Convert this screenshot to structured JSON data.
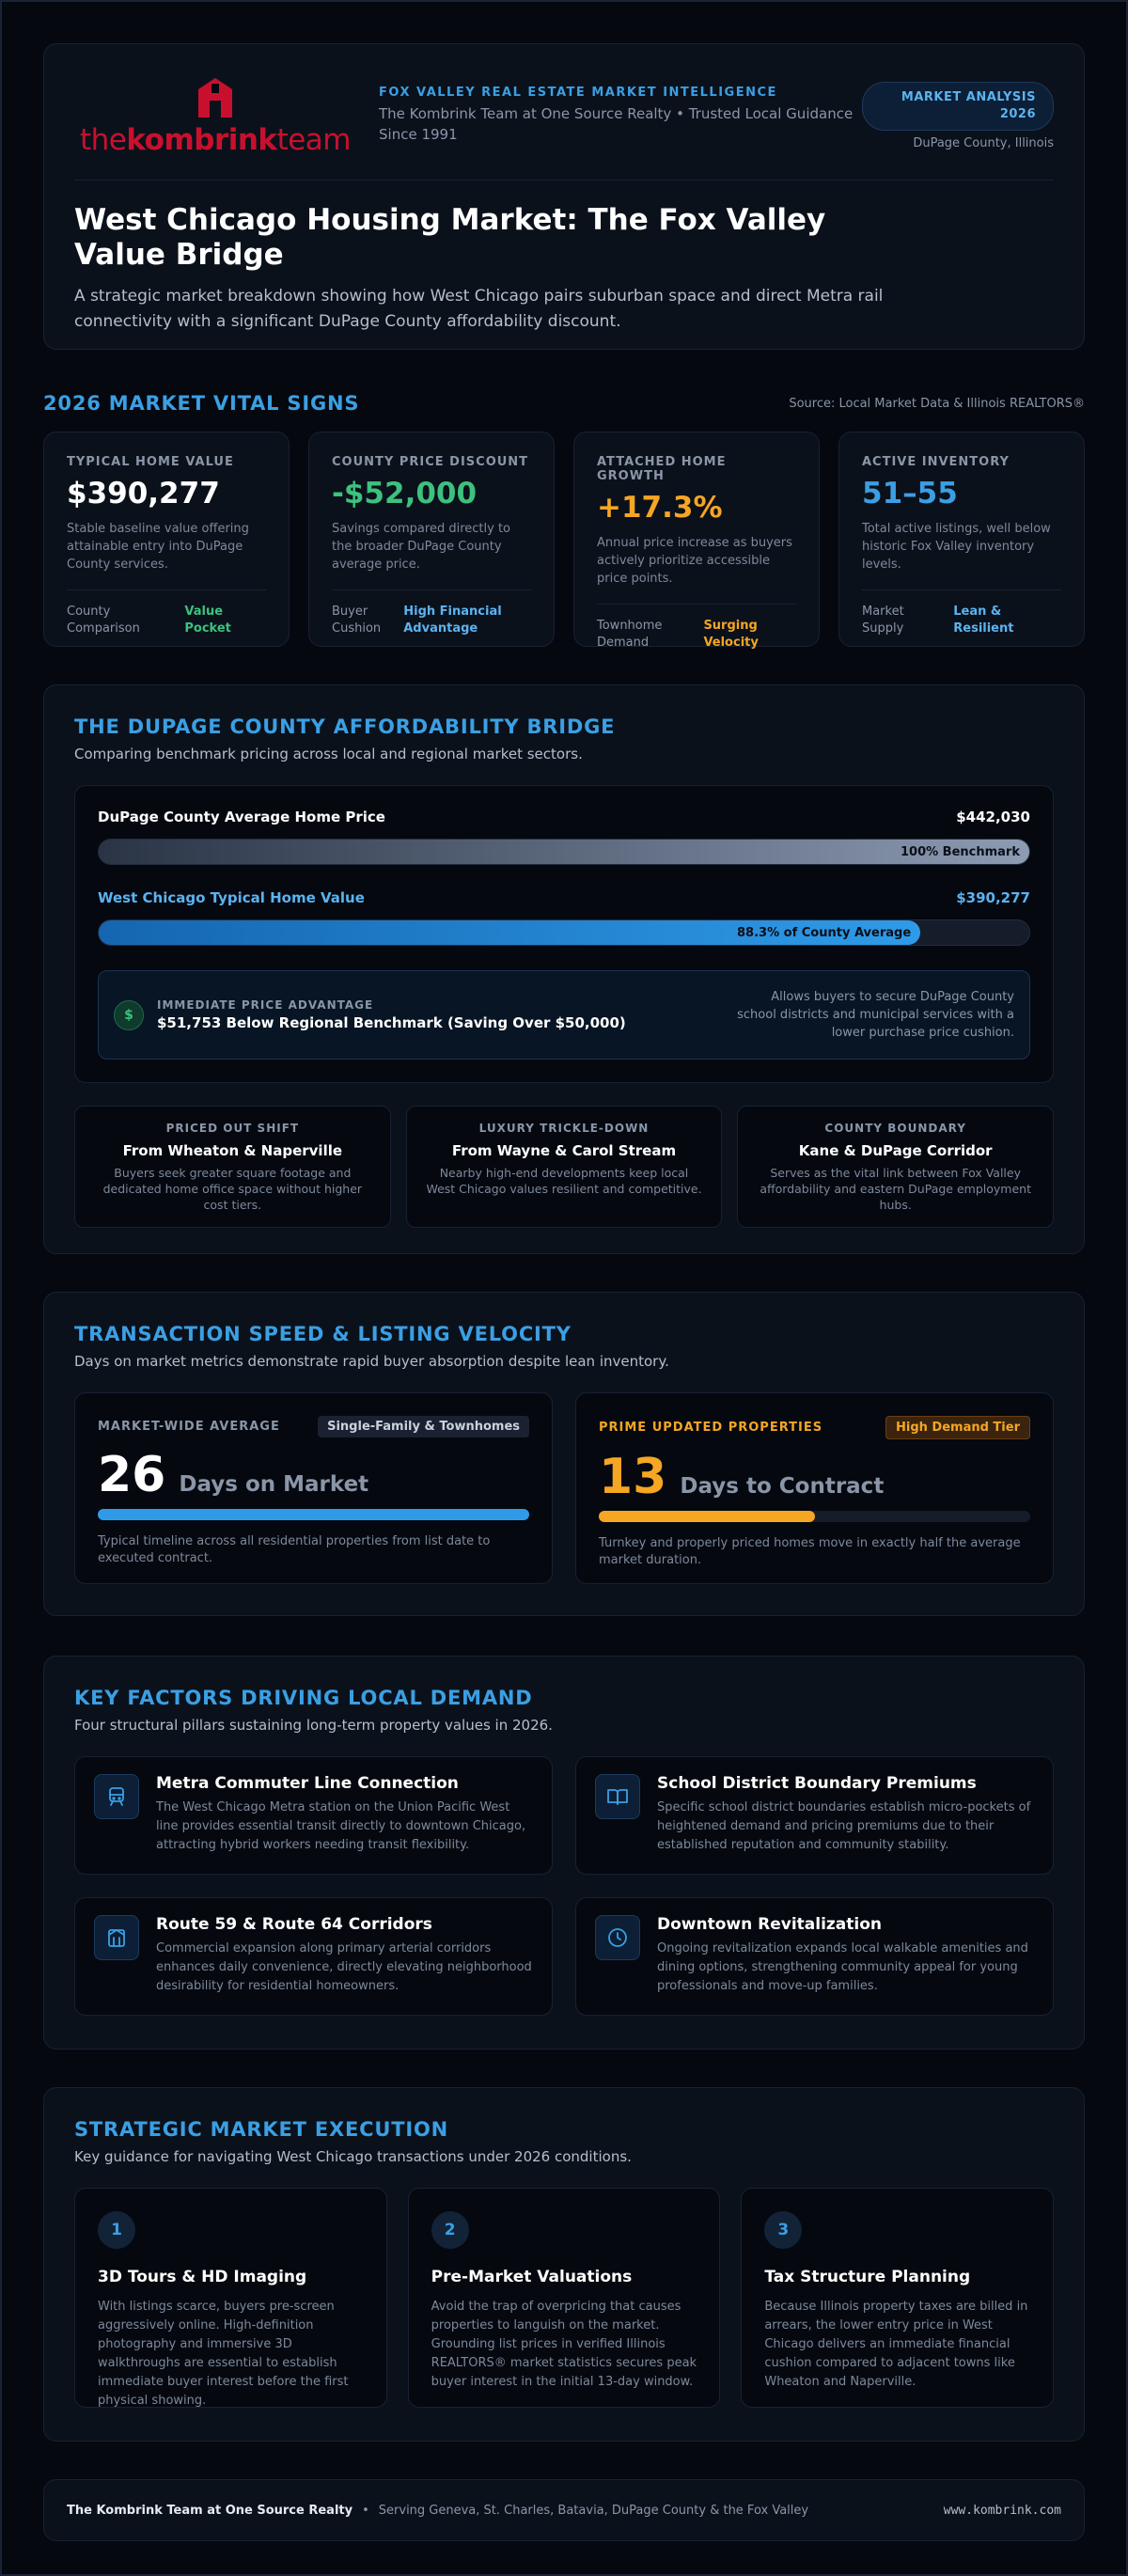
{
  "header": {
    "logo_the": "the",
    "logo_kombrink": "kombrink",
    "logo_team": "team",
    "eyebrow": "FOX VALLEY REAL ESTATE MARKET INTELLIGENCE",
    "subtitle": "The Kombrink Team at One Source Realty • Trusted Local Guidance Since 1991",
    "badge": "MARKET ANALYSIS 2026",
    "location": "DuPage County, Illinois",
    "title": "West Chicago Housing Market: The Fox Valley Value Bridge",
    "description": "A strategic market breakdown showing how West Chicago pairs suburban space and direct Metra rail connectivity with a significant DuPage County affordability discount."
  },
  "vitals": {
    "title": "2026 MARKET VITAL SIGNS",
    "source": "Source: Local Market Data & Illinois REALTORS®",
    "cards": [
      {
        "label": "TYPICAL HOME VALUE",
        "value": "$390,277",
        "desc": "Stable baseline value offering attainable entry into DuPage County services.",
        "foot_label": "County Comparison",
        "foot_value": "Value Pocket"
      },
      {
        "label": "COUNTY PRICE DISCOUNT",
        "value": "-$52,000",
        "desc": "Savings compared directly to the broader DuPage County average price.",
        "foot_label": "Buyer Cushion",
        "foot_value": "High Financial Advantage"
      },
      {
        "label": "ATTACHED HOME GROWTH",
        "value": "+17.3%",
        "desc": "Annual price increase as buyers actively prioritize accessible price points.",
        "foot_label": "Townhome Demand",
        "foot_value": "Surging Velocity"
      },
      {
        "label": "ACTIVE INVENTORY",
        "value": "51–55",
        "desc": "Total active listings, well below historic Fox Valley inventory levels.",
        "foot_label": "Market Supply",
        "foot_value": "Lean & Resilient"
      }
    ]
  },
  "bridge": {
    "title": "THE DUPAGE COUNTY AFFORDABILITY BRIDGE",
    "subtitle": "Comparing benchmark pricing across local and regional market sectors.",
    "bars": [
      {
        "name": "DuPage County Average Home Price",
        "price": "$442,030",
        "value": 100,
        "label": "100% Benchmark"
      },
      {
        "name": "West Chicago Typical Home Value",
        "price": "$390,277",
        "value": 88.3,
        "label": "88.3% of County Average"
      }
    ],
    "advantage": {
      "label": "IMMEDIATE PRICE ADVANTAGE",
      "value": "$51,753 Below Regional Benchmark (Saving Over $50,000)",
      "note": "Allows buyers to secure DuPage County school districts and municipal services with a lower purchase price cushion."
    },
    "cards": [
      {
        "label": "PRICED OUT SHIFT",
        "title": "From Wheaton & Naperville",
        "desc": "Buyers seek greater square footage and dedicated home office space without higher cost tiers."
      },
      {
        "label": "LUXURY TRICKLE-DOWN",
        "title": "From Wayne & Carol Stream",
        "desc": "Nearby high-end developments keep local West Chicago values resilient and competitive."
      },
      {
        "label": "COUNTY BOUNDARY",
        "title": "Kane & DuPage Corridor",
        "desc": "Serves as the vital link between Fox Valley affordability and eastern DuPage employment hubs."
      }
    ]
  },
  "transaction": {
    "title": "TRANSACTION SPEED & LISTING VELOCITY",
    "subtitle": "Days on market metrics demonstrate rapid buyer absorption despite lean inventory.",
    "boxes": [
      {
        "label": "MARKET-WIDE AVERAGE",
        "tag": "Single-Family & Townhomes",
        "days": 26,
        "unit": "Days on Market",
        "desc": "Typical timeline across all residential properties from list date to executed contract."
      },
      {
        "label": "PRIME UPDATED PROPERTIES",
        "tag": "High Demand Tier",
        "days": 13,
        "unit": "Days to Contract",
        "desc": "Turnkey and properly priced homes move in exactly half the average market duration."
      }
    ]
  },
  "factors": {
    "title": "KEY FACTORS DRIVING LOCAL DEMAND",
    "subtitle": "Four structural pillars sustaining long-term property values in 2026.",
    "items": [
      {
        "title": "Metra Commuter Line Connection",
        "desc": "The West Chicago Metra station on the Union Pacific West line provides essential transit directly to downtown Chicago, attracting hybrid workers needing transit flexibility."
      },
      {
        "title": "School District Boundary Premiums",
        "desc": "Specific school district boundaries establish micro-pockets of heightened demand and pricing premiums due to their established reputation and community stability."
      },
      {
        "title": "Route 59 & Route 64 Corridors",
        "desc": "Commercial expansion along primary arterial corridors enhances daily convenience, directly elevating neighborhood desirability for residential homeowners."
      },
      {
        "title": "Downtown Revitalization",
        "desc": "Ongoing revitalization expands local walkable amenities and dining options, strengthening community appeal for young professionals and move-up families."
      }
    ]
  },
  "strategy": {
    "title": "STRATEGIC MARKET EXECUTION",
    "subtitle": "Key guidance for navigating West Chicago transactions under 2026 conditions.",
    "steps": [
      {
        "number": "1",
        "title": "3D Tours & HD Imaging",
        "desc": "With listings scarce, buyers pre-screen aggressively online. High-definition photography and immersive 3D walkthroughs are essential to establish immediate buyer interest before the first physical showing."
      },
      {
        "number": "2",
        "title": "Pre-Market Valuations",
        "desc": "Avoid the trap of overpricing that causes properties to languish on the market. Grounding list prices in verified Illinois REALTORS® market statistics secures peak buyer interest in the initial 13-day window."
      },
      {
        "number": "3",
        "title": "Tax Structure Planning",
        "desc": "Because Illinois property taxes are billed in arrears, the lower entry price in West Chicago delivers an immediate financial cushion compared to adjacent towns like Wheaton and Naperville."
      }
    ]
  },
  "footer": {
    "brand": "The Kombrink Team at One Source Realty",
    "separator": "•",
    "areas": "Serving Geneva, St. Charles, Batavia, DuPage County & the Fox Valley",
    "url": "www.kombrink.com"
  }
}
